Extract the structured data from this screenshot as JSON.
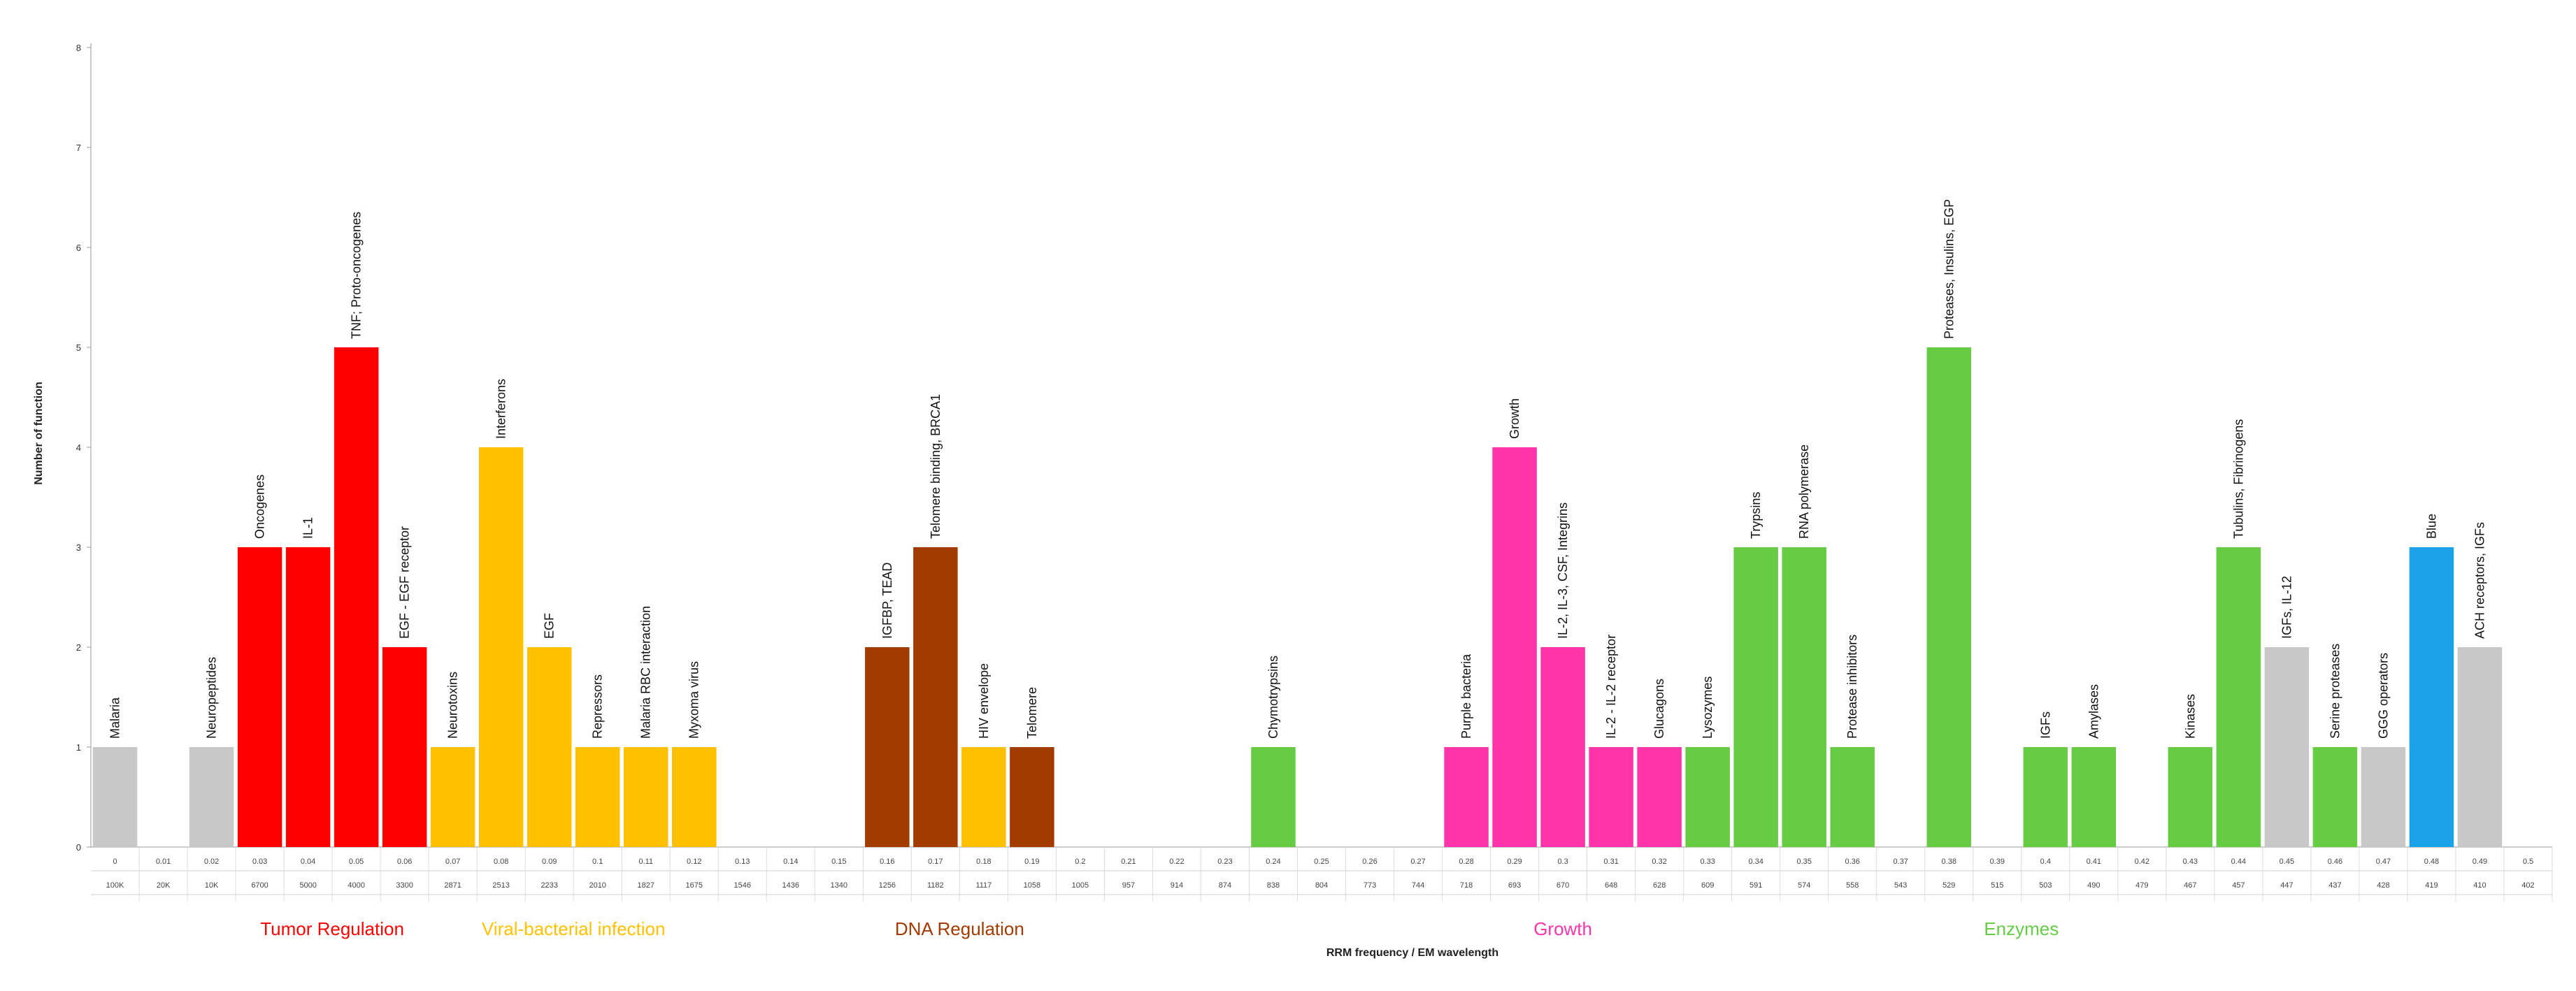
{
  "chart_data": {
    "type": "bar",
    "xlabel": "RRM frequency / EM wavelength",
    "ylabel": "Number of function",
    "ylim": [
      0,
      8
    ],
    "y_ticks": [
      "0",
      "1",
      "2",
      "3",
      "4",
      "5",
      "6",
      "7",
      "8"
    ],
    "grid": false,
    "colors": {
      "Tumor Regulation": "#ff0000",
      "Viral-bacterial infection": "#ffc000",
      "DNA Regulation": "#a33a00",
      "Growth": "#ff33aa",
      "Enzymes": "#66cc44",
      "Other": "#c8c8c8",
      "Blue": "#1aa3e8"
    },
    "bars": [
      {
        "freq": "0",
        "wavelength": "100K",
        "value": 1,
        "label": "Malaria",
        "group": "Other"
      },
      {
        "freq": "0.01",
        "wavelength": "20K",
        "value": 0,
        "label": "",
        "group": "Other"
      },
      {
        "freq": "0.02",
        "wavelength": "10K",
        "value": 1,
        "label": "Neuropeptides",
        "group": "Other"
      },
      {
        "freq": "0.03",
        "wavelength": "6700",
        "value": 3,
        "label": "Oncogenes",
        "group": "Tumor Regulation"
      },
      {
        "freq": "0.04",
        "wavelength": "5000",
        "value": 3,
        "label": "IL-1",
        "group": "Tumor Regulation"
      },
      {
        "freq": "0.05",
        "wavelength": "4000",
        "value": 5,
        "label": "TNF; Proto-oncogenes",
        "group": "Tumor Regulation"
      },
      {
        "freq": "0.06",
        "wavelength": "3300",
        "value": 2,
        "label": "EGF - EGF receptor",
        "group": "Tumor Regulation"
      },
      {
        "freq": "0.07",
        "wavelength": "2871",
        "value": 1,
        "label": "Neurotoxins",
        "group": "Viral-bacterial infection"
      },
      {
        "freq": "0.08",
        "wavelength": "2513",
        "value": 4,
        "label": "Interferons",
        "group": "Viral-bacterial infection"
      },
      {
        "freq": "0.09",
        "wavelength": "2233",
        "value": 2,
        "label": "EGF",
        "group": "Viral-bacterial infection"
      },
      {
        "freq": "0.1",
        "wavelength": "2010",
        "value": 1,
        "label": "Repressors",
        "group": "Viral-bacterial infection"
      },
      {
        "freq": "0.11",
        "wavelength": "1827",
        "value": 1,
        "label": "Malaria RBC interaction",
        "group": "Viral-bacterial infection"
      },
      {
        "freq": "0.12",
        "wavelength": "1675",
        "value": 1,
        "label": "Myxoma virus",
        "group": "Viral-bacterial infection"
      },
      {
        "freq": "0.13",
        "wavelength": "1546",
        "value": 0,
        "label": "",
        "group": "Other"
      },
      {
        "freq": "0.14",
        "wavelength": "1436",
        "value": 0,
        "label": "",
        "group": "Other"
      },
      {
        "freq": "0.15",
        "wavelength": "1340",
        "value": 0,
        "label": "",
        "group": "Other"
      },
      {
        "freq": "0.16",
        "wavelength": "1256",
        "value": 2,
        "label": "IGFBP, TEAD",
        "group": "DNA Regulation"
      },
      {
        "freq": "0.17",
        "wavelength": "1182",
        "value": 3,
        "label": "Telomere binding, BRCA1",
        "group": "DNA Regulation"
      },
      {
        "freq": "0.18",
        "wavelength": "1117",
        "value": 1,
        "label": "HIV envelope",
        "group": "Viral-bacterial infection"
      },
      {
        "freq": "0.19",
        "wavelength": "1058",
        "value": 1,
        "label": "Telomere",
        "group": "DNA Regulation"
      },
      {
        "freq": "0.2",
        "wavelength": "1005",
        "value": 0,
        "label": "",
        "group": "Other"
      },
      {
        "freq": "0.21",
        "wavelength": "957",
        "value": 0,
        "label": "",
        "group": "Other"
      },
      {
        "freq": "0.22",
        "wavelength": "914",
        "value": 0,
        "label": "",
        "group": "Other"
      },
      {
        "freq": "0.23",
        "wavelength": "874",
        "value": 0,
        "label": "",
        "group": "Other"
      },
      {
        "freq": "0.24",
        "wavelength": "838",
        "value": 1,
        "label": "Chymotrypsins",
        "group": "Enzymes"
      },
      {
        "freq": "0.25",
        "wavelength": "804",
        "value": 0,
        "label": "",
        "group": "Other"
      },
      {
        "freq": "0.26",
        "wavelength": "773",
        "value": 0,
        "label": "",
        "group": "Other"
      },
      {
        "freq": "0.27",
        "wavelength": "744",
        "value": 0,
        "label": "",
        "group": "Other"
      },
      {
        "freq": "0.28",
        "wavelength": "718",
        "value": 1,
        "label": "Purple bacteria",
        "group": "Growth"
      },
      {
        "freq": "0.29",
        "wavelength": "693",
        "value": 4,
        "label": "Growth",
        "group": "Growth"
      },
      {
        "freq": "0.3",
        "wavelength": "670",
        "value": 2,
        "label": "IL-2, IL-3, CSF, Integrins",
        "group": "Growth"
      },
      {
        "freq": "0.31",
        "wavelength": "648",
        "value": 1,
        "label": "IL-2 - IL-2 receptor",
        "group": "Growth"
      },
      {
        "freq": "0.32",
        "wavelength": "628",
        "value": 1,
        "label": "Glucagons",
        "group": "Growth"
      },
      {
        "freq": "0.33",
        "wavelength": "609",
        "value": 1,
        "label": "Lysozymes",
        "group": "Enzymes"
      },
      {
        "freq": "0.34",
        "wavelength": "591",
        "value": 3,
        "label": "Trypsins",
        "group": "Enzymes"
      },
      {
        "freq": "0.35",
        "wavelength": "574",
        "value": 3,
        "label": "RNA polymerase",
        "group": "Enzymes"
      },
      {
        "freq": "0.36",
        "wavelength": "558",
        "value": 1,
        "label": "Protease inhibitors",
        "group": "Enzymes"
      },
      {
        "freq": "0.37",
        "wavelength": "543",
        "value": 0,
        "label": "",
        "group": "Other"
      },
      {
        "freq": "0.38",
        "wavelength": "529",
        "value": 5,
        "label": "Proteases, Insulins, EGP",
        "group": "Enzymes"
      },
      {
        "freq": "0.39",
        "wavelength": "515",
        "value": 0,
        "label": "",
        "group": "Other"
      },
      {
        "freq": "0.4",
        "wavelength": "503",
        "value": 1,
        "label": "IGFs",
        "group": "Enzymes"
      },
      {
        "freq": "0.41",
        "wavelength": "490",
        "value": 1,
        "label": "Amylases",
        "group": "Enzymes"
      },
      {
        "freq": "0.42",
        "wavelength": "479",
        "value": 0,
        "label": "",
        "group": "Other"
      },
      {
        "freq": "0.43",
        "wavelength": "467",
        "value": 1,
        "label": "Kinases",
        "group": "Enzymes"
      },
      {
        "freq": "0.44",
        "wavelength": "457",
        "value": 3,
        "label": "Tubulins, Fibrinogens",
        "group": "Enzymes"
      },
      {
        "freq": "0.45",
        "wavelength": "447",
        "value": 2,
        "label": "IGFs, IL-12",
        "group": "Other"
      },
      {
        "freq": "0.46",
        "wavelength": "437",
        "value": 1,
        "label": "Serine proteases",
        "group": "Enzymes"
      },
      {
        "freq": "0.47",
        "wavelength": "428",
        "value": 1,
        "label": "GGG operators",
        "group": "Other"
      },
      {
        "freq": "0.48",
        "wavelength": "419",
        "value": 3,
        "label": "Blue",
        "group": "Blue"
      },
      {
        "freq": "0.49",
        "wavelength": "410",
        "value": 2,
        "label": "ACH receptors, IGFs",
        "group": "Other"
      },
      {
        "freq": "0.5",
        "wavelength": "402",
        "value": 0,
        "label": "",
        "group": "Other"
      }
    ],
    "group_labels": [
      {
        "text": "Tumor Regulation",
        "group": "Tumor Regulation",
        "from": 3,
        "to": 6
      },
      {
        "text": "Viral-bacterial infection",
        "group": "Viral-bacterial infection",
        "from": 7,
        "to": 12
      },
      {
        "text": "DNA Regulation",
        "group": "DNA Regulation",
        "from": 16,
        "to": 19
      },
      {
        "text": "Growth",
        "group": "Growth",
        "from": 28,
        "to": 32
      },
      {
        "text": "Enzymes",
        "group": "Enzymes",
        "from": 33,
        "to": 46
      }
    ]
  }
}
